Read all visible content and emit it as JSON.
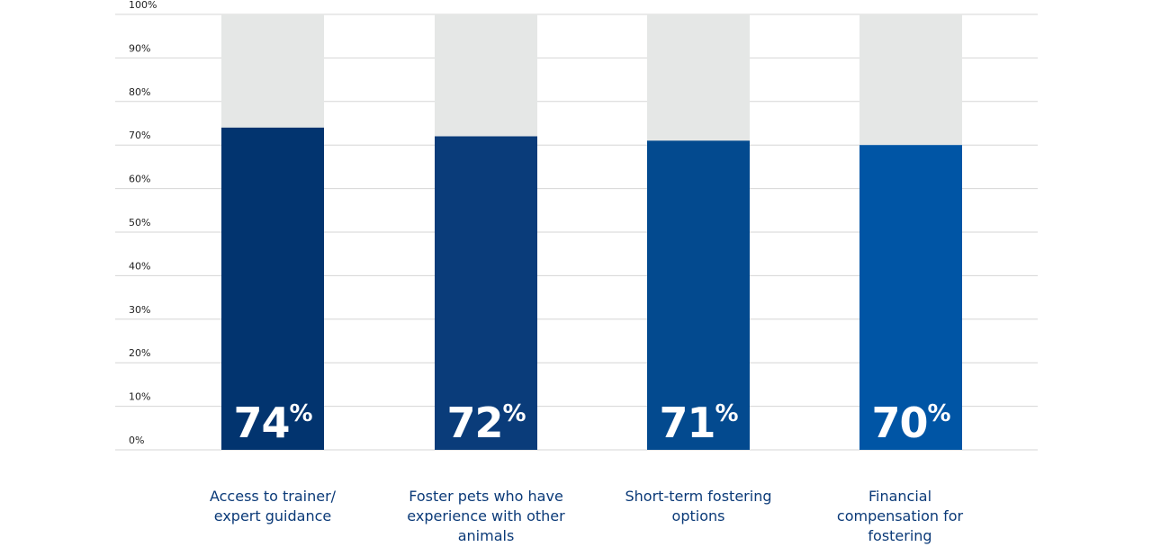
{
  "chart_data": {
    "type": "bar",
    "categories": [
      "Access to trainer/ expert guidance",
      "Foster pets who have experience with other animals",
      "Short-term fostering options",
      "Financial compensation for fostering"
    ],
    "values": [
      74,
      72,
      71,
      70
    ],
    "value_labels": [
      "74%",
      "72%",
      "71%",
      "70%"
    ],
    "colors": [
      "#02346f",
      "#0a3c7a",
      "#034a8f",
      "#0055a5"
    ],
    "background_color": "#e5e7e6",
    "ylim": [
      0,
      100
    ],
    "yticks": [
      {
        "value": 0,
        "label": "0%"
      },
      {
        "value": 10,
        "label": "10%"
      },
      {
        "value": 20,
        "label": "20%"
      },
      {
        "value": 30,
        "label": "30%"
      },
      {
        "value": 40,
        "label": "40%"
      },
      {
        "value": 50,
        "label": "50%"
      },
      {
        "value": 60,
        "label": "60%"
      },
      {
        "value": 70,
        "label": "70%"
      },
      {
        "value": 80,
        "label": "80%"
      },
      {
        "value": 90,
        "label": "90%"
      },
      {
        "value": 100,
        "label": "100%"
      }
    ],
    "grid": true
  }
}
